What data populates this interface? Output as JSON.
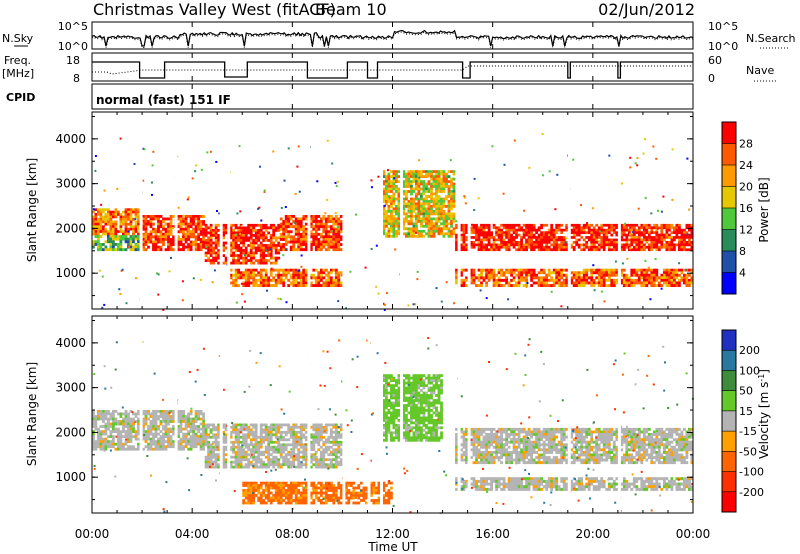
{
  "header": {
    "title": "Christmas Valley West (fitACF)",
    "beam": "Beam 10",
    "date": "02/Jun/2012"
  },
  "noise_panel": {
    "left_label": "N.Sky",
    "right_label": "N.Search",
    "ticks": [
      "10^5",
      "10^0"
    ],
    "right_ticks": [
      "10^5",
      "10^0"
    ]
  },
  "freq_panel": {
    "left_label_1": "Freq.",
    "left_label_2": "[MHz]",
    "left_ticks": [
      "18",
      "8"
    ],
    "right_label": "Nave",
    "right_ticks": [
      "60",
      "0"
    ]
  },
  "cpid": {
    "label": "CPID",
    "value": "normal (fast) 151 IF"
  },
  "x_axis": {
    "label": "Time UT",
    "ticks": [
      "00:00",
      "04:00",
      "08:00",
      "12:00",
      "16:00",
      "20:00",
      "00:00"
    ]
  },
  "power_panel": {
    "ylabel": "Slant Range [km]",
    "yticks": [
      "4000",
      "3000",
      "2000",
      "1000"
    ],
    "colorbar_label": "Power [dB]",
    "colorbar_ticks": [
      "28",
      "24",
      "20",
      "16",
      "12",
      "8",
      "4"
    ],
    "colorbar_colors": [
      "#ff0000",
      "#ff5a00",
      "#ff9a00",
      "#e6c800",
      "#50c83c",
      "#2a8c5a",
      "#2050a8",
      "#0000ff"
    ]
  },
  "velocity_panel": {
    "ylabel": "Slant Range [km]",
    "yticks": [
      "4000",
      "3000",
      "2000",
      "1000"
    ],
    "colorbar_label": "Velocity [m s",
    "colorbar_label_sup": "-1",
    "colorbar_label_end": "]",
    "colorbar_ticks": [
      "200",
      "100",
      "50",
      "15",
      "-15",
      "-50",
      "-100",
      "-200"
    ],
    "colorbar_colors": [
      "#2030c0",
      "#2878a0",
      "#3c8c3c",
      "#64c828",
      "#b4b4b4",
      "#ffa000",
      "#ff6400",
      "#ff3000",
      "#ff0000"
    ]
  },
  "chart_data": {
    "type": "heatmap",
    "x": [
      "00:00",
      "04:00",
      "08:00",
      "12:00",
      "16:00",
      "20:00",
      "00:00"
    ],
    "xlabel": "Time UT",
    "ylabel": "Slant Range [km]",
    "ylim": [
      200,
      4600
    ],
    "panels": [
      {
        "name": "Power [dB]",
        "range": [
          0,
          30
        ],
        "scatter_bands": [
          {
            "t0": 0.0,
            "t1": 1.9,
            "r0": 1850,
            "r1": 2450,
            "value": 22
          },
          {
            "t0": 0.0,
            "t1": 1.9,
            "r0": 1500,
            "r1": 1850,
            "value": 12
          },
          {
            "t0": 2.0,
            "t1": 4.5,
            "r0": 1500,
            "r1": 2300,
            "value": 26
          },
          {
            "t0": 4.5,
            "t1": 7.5,
            "r0": 1200,
            "r1": 2100,
            "value": 27
          },
          {
            "t0": 7.5,
            "t1": 10.0,
            "r0": 1500,
            "r1": 2300,
            "value": 26
          },
          {
            "t0": 5.5,
            "t1": 10.0,
            "r0": 700,
            "r1": 1100,
            "value": 24
          },
          {
            "t0": 11.5,
            "t1": 14.5,
            "r0": 1800,
            "r1": 3300,
            "value": 18
          },
          {
            "t0": 14.5,
            "t1": 24.0,
            "r0": 1500,
            "r1": 2100,
            "value": 28
          },
          {
            "t0": 14.5,
            "t1": 24.0,
            "r0": 700,
            "r1": 1100,
            "value": 24
          }
        ]
      },
      {
        "name": "Velocity [m s-1]",
        "range": [
          -200,
          200
        ],
        "scatter_bands": [
          {
            "t0": 0.0,
            "t1": 4.5,
            "r0": 1600,
            "r1": 2500,
            "value": 0
          },
          {
            "t0": 4.5,
            "t1": 10.0,
            "r0": 1200,
            "r1": 2200,
            "value": 0
          },
          {
            "t0": 6.0,
            "t1": 12.0,
            "r0": 400,
            "r1": 900,
            "value": -60
          },
          {
            "t0": 11.5,
            "t1": 14.0,
            "r0": 1800,
            "r1": 3300,
            "value": 30
          },
          {
            "t0": 14.5,
            "t1": 24.0,
            "r0": 1300,
            "r1": 2100,
            "value": 0
          },
          {
            "t0": 14.5,
            "t1": 24.0,
            "r0": 700,
            "r1": 1000,
            "value": 0
          }
        ]
      }
    ]
  }
}
